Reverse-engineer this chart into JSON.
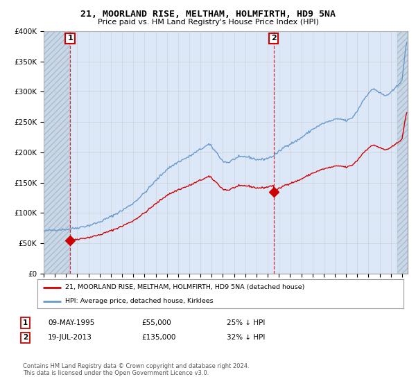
{
  "title": "21, MOORLAND RISE, MELTHAM, HOLMFIRTH, HD9 5NA",
  "subtitle": "Price paid vs. HM Land Registry's House Price Index (HPI)",
  "legend_label_red": "21, MOORLAND RISE, MELTHAM, HOLMFIRTH, HD9 5NA (detached house)",
  "legend_label_blue": "HPI: Average price, detached house, Kirklees",
  "annotation1_label": "1",
  "annotation1_date": "09-MAY-1995",
  "annotation1_price": "£55,000",
  "annotation1_hpi": "25% ↓ HPI",
  "annotation2_label": "2",
  "annotation2_date": "19-JUL-2013",
  "annotation2_price": "£135,000",
  "annotation2_hpi": "32% ↓ HPI",
  "footer": "Contains HM Land Registry data © Crown copyright and database right 2024.\nThis data is licensed under the Open Government Licence v3.0.",
  "ylim": [
    0,
    400000
  ],
  "yticks": [
    0,
    50000,
    100000,
    150000,
    200000,
    250000,
    300000,
    350000,
    400000
  ],
  "ytick_labels": [
    "£0",
    "£50K",
    "£100K",
    "£150K",
    "£200K",
    "£250K",
    "£300K",
    "£350K",
    "£400K"
  ],
  "red_color": "#cc0000",
  "blue_color": "#6699cc",
  "grid_color": "#cccccc",
  "bg_color": "#ffffff",
  "plot_bg": "#dce8f8",
  "hatch_bg": "#c8d8e8",
  "sale1_x": 1995.36,
  "sale1_y": 55000,
  "sale2_x": 2013.54,
  "sale2_y": 135000,
  "xmin": 1993.0,
  "xmax": 2025.5,
  "hatch_right_start": 2024.58
}
